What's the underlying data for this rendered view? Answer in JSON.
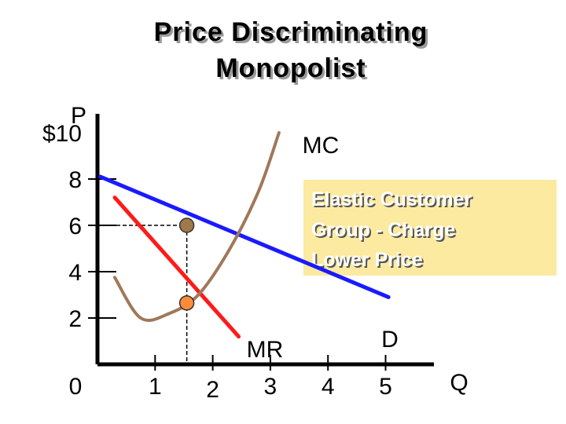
{
  "chart_data": {
    "type": "line",
    "title_lines": [
      "Price Discriminating",
      "Monopolist"
    ],
    "xlabel": "Q",
    "ylabel": "P",
    "xlim": [
      0,
      5.6
    ],
    "ylim": [
      0,
      10.5
    ],
    "x_ticks": [
      {
        "value": 0,
        "label": "0"
      },
      {
        "value": 1,
        "label": "1"
      },
      {
        "value": 2,
        "label": "2"
      },
      {
        "value": 3,
        "label": "3"
      },
      {
        "value": 4,
        "label": "4"
      },
      {
        "value": 5,
        "label": "5"
      }
    ],
    "y_ticks": [
      {
        "value": 2,
        "label": "2"
      },
      {
        "value": 4,
        "label": "4"
      },
      {
        "value": 6,
        "label": "6"
      },
      {
        "value": 8,
        "label": "8"
      },
      {
        "value": 10,
        "label": "$10"
      }
    ],
    "grid": false,
    "series": [
      {
        "name": "D",
        "color": "#1a1aff",
        "style": "line",
        "points": [
          [
            0.05,
            8.1
          ],
          [
            5.05,
            2.9
          ]
        ]
      },
      {
        "name": "MR",
        "color": "#ff1a1a",
        "style": "line",
        "points": [
          [
            0.3,
            7.2
          ],
          [
            2.45,
            1.2
          ]
        ]
      },
      {
        "name": "MC",
        "color": "#a0785a",
        "style": "curve",
        "points": [
          [
            0.3,
            3.75
          ],
          [
            0.75,
            2.0
          ],
          [
            1.25,
            2.2
          ],
          [
            1.75,
            3.0
          ],
          [
            2.3,
            5.0
          ],
          [
            2.8,
            7.5
          ],
          [
            3.15,
            10.0
          ]
        ]
      }
    ],
    "markers": [
      {
        "x": 1.55,
        "y": 6.0,
        "color": "#a0784a"
      },
      {
        "x": 1.55,
        "y": 2.65,
        "color": "#ff8c3a"
      }
    ],
    "guides": [
      {
        "from": [
          0,
          6.0
        ],
        "to": [
          1.55,
          6.0
        ]
      },
      {
        "from": [
          1.55,
          6.0
        ],
        "to": [
          1.55,
          0
        ]
      }
    ],
    "annotation": {
      "lines": [
        "Elastic Customer",
        "Group - Charge",
        "Lower Price"
      ],
      "background": "#fbeaa0"
    }
  }
}
